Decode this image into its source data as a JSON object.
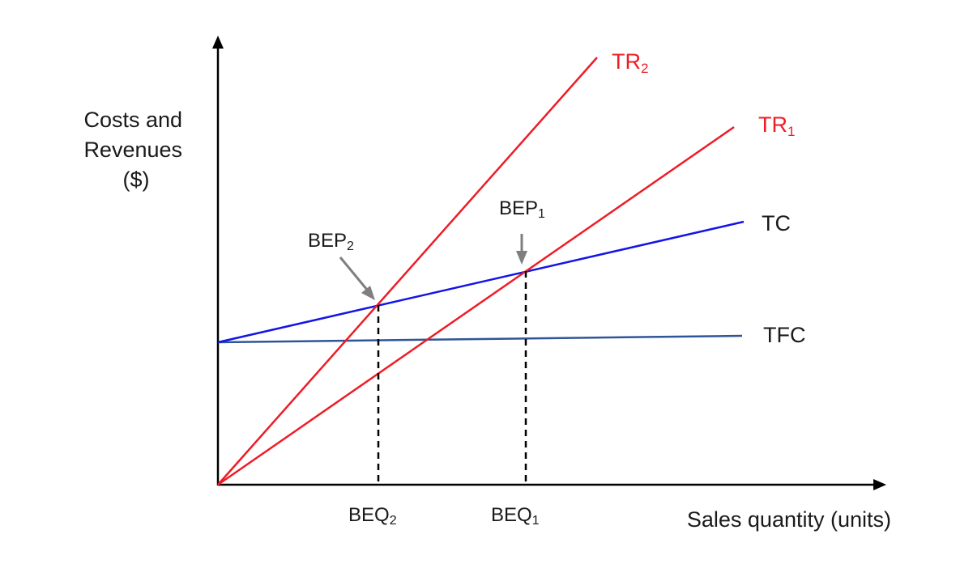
{
  "diagram": {
    "y_axis_label": [
      "Costs and",
      "Revenues",
      "($)"
    ],
    "x_axis_label": "Sales quantity (units)",
    "lines": {
      "tr2": {
        "base": "TR",
        "sub": "2",
        "color": "#ee1c25"
      },
      "tr1": {
        "base": "TR",
        "sub": "1",
        "color": "#ee1c25"
      },
      "tc": {
        "base": "TC",
        "color": "#1414e6"
      },
      "tfc": {
        "base": "TFC",
        "color": "#2f5597"
      }
    },
    "points": {
      "bep1": {
        "base": "BEP",
        "sub": "1"
      },
      "bep2": {
        "base": "BEP",
        "sub": "2"
      },
      "beq1": {
        "base": "BEQ",
        "sub": "1"
      },
      "beq2": {
        "base": "BEQ",
        "sub": "2"
      }
    },
    "colors": {
      "axis": "#000000",
      "arrow": "#7f7f7f",
      "dashed": "#000000"
    }
  }
}
